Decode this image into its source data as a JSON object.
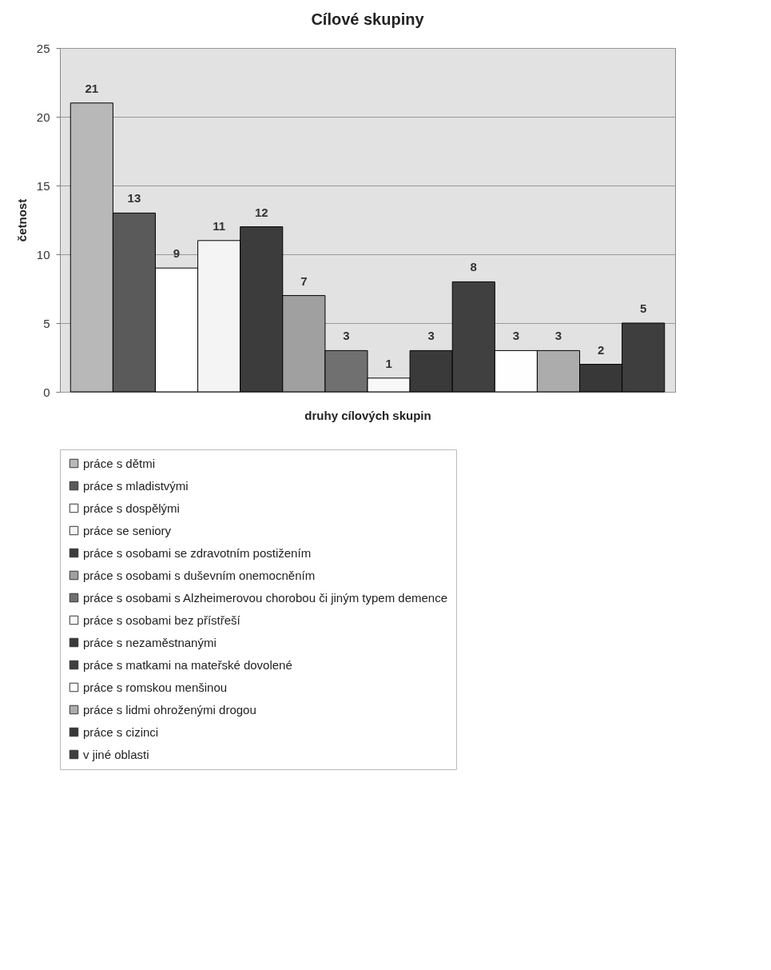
{
  "chart_data": {
    "type": "bar",
    "title": "Cílové skupiny",
    "xlabel": "druhy cílových skupin",
    "ylabel": "četnost",
    "categories": [
      null,
      null,
      null,
      null,
      null,
      null,
      null,
      null,
      null,
      null,
      null,
      null,
      null,
      null
    ],
    "series": [
      {
        "name": "práce s dětmi",
        "color": "#b8b8b8",
        "values": [
          21,
          null,
          null,
          null,
          null,
          null,
          null,
          null,
          null,
          null,
          null,
          null,
          null,
          null
        ]
      },
      {
        "name": "práce s mladistvými",
        "color": "#5a5a5a",
        "values": [
          null,
          13,
          null,
          null,
          null,
          null,
          null,
          null,
          null,
          null,
          null,
          null,
          null,
          null
        ]
      },
      {
        "name": "práce s dospělými",
        "color": "#ffffff",
        "values": [
          null,
          null,
          9,
          null,
          null,
          null,
          null,
          null,
          null,
          null,
          null,
          null,
          null,
          null
        ]
      },
      {
        "name": "práce se seniory",
        "color": "#f4f4f4",
        "values": [
          null,
          null,
          null,
          11,
          null,
          null,
          null,
          null,
          null,
          null,
          null,
          null,
          null,
          null
        ]
      },
      {
        "name": "práce s osobami se zdravotním postižením",
        "color": "#3c3c3c",
        "values": [
          null,
          null,
          null,
          null,
          12,
          null,
          null,
          null,
          null,
          null,
          null,
          null,
          null,
          null
        ]
      },
      {
        "name": "práce s osobami s duševním onemocněním",
        "color": "#a0a0a0",
        "values": [
          null,
          null,
          null,
          null,
          null,
          7,
          null,
          null,
          null,
          null,
          null,
          null,
          null,
          null
        ]
      },
      {
        "name": "práce s osobami s Alzheimerovou chorobou či jiným typem demence",
        "color": "#707070",
        "values": [
          null,
          null,
          null,
          null,
          null,
          null,
          3,
          null,
          null,
          null,
          null,
          null,
          null,
          null
        ]
      },
      {
        "name": "práce s osobami bez přístřeší",
        "color": "#f8f8f8",
        "values": [
          null,
          null,
          null,
          null,
          null,
          null,
          null,
          1,
          null,
          null,
          null,
          null,
          null,
          null
        ]
      },
      {
        "name": "práce s nezaměstnanými",
        "color": "#3a3a3a",
        "values": [
          null,
          null,
          null,
          null,
          null,
          null,
          null,
          null,
          3,
          null,
          null,
          null,
          null,
          null
        ]
      },
      {
        "name": "práce s matkami na mateřské dovolené",
        "color": "#404040",
        "values": [
          null,
          null,
          null,
          null,
          null,
          null,
          null,
          null,
          null,
          8,
          null,
          null,
          null,
          null
        ]
      },
      {
        "name": "práce s romskou menšinou",
        "color": "#fefefe",
        "values": [
          null,
          null,
          null,
          null,
          null,
          null,
          null,
          null,
          null,
          null,
          3,
          null,
          null,
          null
        ]
      },
      {
        "name": "práce s lidmi ohroženými drogou",
        "color": "#acacac",
        "values": [
          null,
          null,
          null,
          null,
          null,
          null,
          null,
          null,
          null,
          null,
          null,
          3,
          null,
          null
        ]
      },
      {
        "name": "práce s cizinci",
        "color": "#383838",
        "values": [
          null,
          null,
          null,
          null,
          null,
          null,
          null,
          null,
          null,
          null,
          null,
          null,
          2,
          null
        ]
      },
      {
        "name": "v jiné oblasti",
        "color": "#3e3e3e",
        "values": [
          null,
          null,
          null,
          null,
          null,
          null,
          null,
          null,
          null,
          null,
          null,
          null,
          null,
          5
        ]
      }
    ],
    "ylim": [
      0,
      25
    ],
    "yticks": [
      0,
      5,
      10,
      15,
      20,
      25
    ],
    "grid": "y",
    "legend": "bottom",
    "tick_labels": "y",
    "data_labels": true
  }
}
